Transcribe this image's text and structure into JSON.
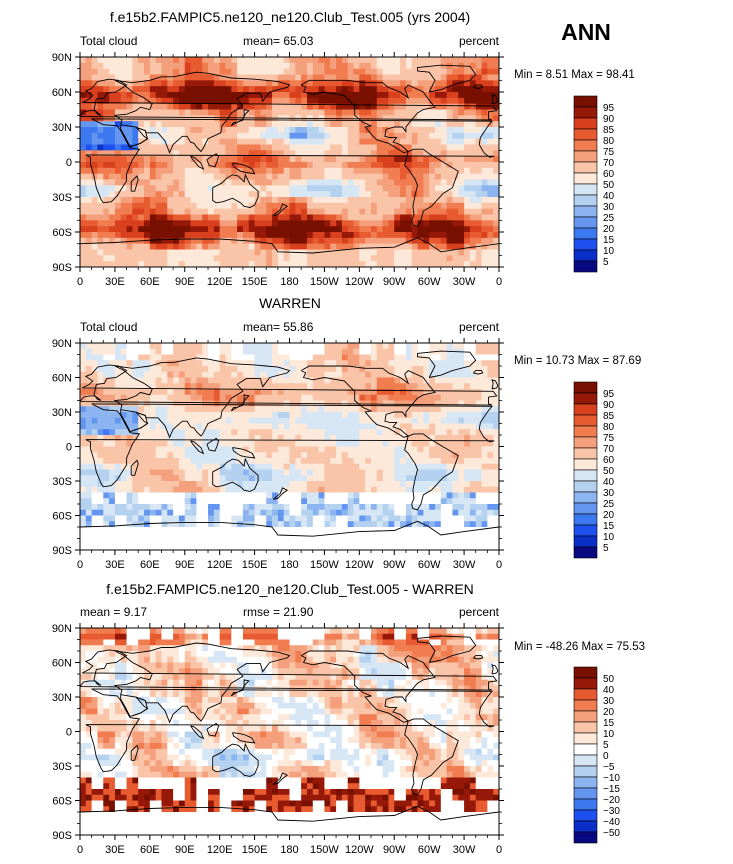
{
  "season": "ANN",
  "tick_labels": {
    "x": [
      "0",
      "30E",
      "60E",
      "90E",
      "120E",
      "150E",
      "180",
      "150W",
      "120W",
      "90W",
      "60W",
      "30W",
      "0"
    ],
    "y": [
      "90N",
      "60N",
      "30N",
      "0",
      "30S",
      "60S",
      "90S"
    ]
  },
  "colors": {
    "abs_scale": [
      "#080880",
      "#0a2ec8",
      "#1e50f0",
      "#3c78f0",
      "#6496f0",
      "#8cb4f0",
      "#b4d2f0",
      "#d7e6f5",
      "#ffffff",
      "#fde9d9",
      "#f9c4a8",
      "#f5a07c",
      "#f07c50",
      "#e85a30",
      "#d8401e",
      "#c02a10",
      "#961808",
      "#781000"
    ],
    "diff_scale": [
      "#080880",
      "#0a2ec8",
      "#1e50f0",
      "#3c78f0",
      "#6496f0",
      "#8cb4f0",
      "#b4d2f0",
      "#d7e6f5",
      "#ffffff",
      "#fde9d9",
      "#f9c4a8",
      "#f5a07c",
      "#f07c50",
      "#e85a30",
      "#d8401e",
      "#c02a10",
      "#961808",
      "#781000"
    ]
  },
  "chart_data": [
    {
      "type": "heatmap",
      "title": "f.e15b2.FAMPIC5.ne120_ne120.Club_Test.005 (yrs 2004)",
      "left_label": "Total cloud",
      "center_label": "mean=   65.03",
      "right_label": "percent",
      "stats_label": "Min =    8.51  Max =   98.41",
      "min": 8.51,
      "max": 98.41,
      "mean": 65.03,
      "legend_levels": [
        "95",
        "90",
        "85",
        "80",
        "75",
        "70",
        "60",
        "50",
        "40",
        "30",
        "25",
        "20",
        "15",
        "10",
        "5"
      ],
      "xlim": [
        0,
        360
      ],
      "ylim": [
        -90,
        90
      ]
    },
    {
      "type": "heatmap",
      "title": "WARREN",
      "left_label": "Total cloud",
      "center_label": "mean=   55.86",
      "right_label": "percent",
      "stats_label": "Min =   10.73  Max =   87.69",
      "min": 10.73,
      "max": 87.69,
      "mean": 55.86,
      "legend_levels": [
        "95",
        "90",
        "85",
        "80",
        "75",
        "70",
        "60",
        "50",
        "40",
        "30",
        "25",
        "20",
        "15",
        "10",
        "5"
      ],
      "xlim": [
        0,
        360
      ],
      "ylim": [
        -90,
        90
      ]
    },
    {
      "type": "heatmap",
      "title": "f.e15b2.FAMPIC5.ne120_ne120.Club_Test.005 - WARREN",
      "left_label": "mean =    9.17",
      "center_label": "rmse =   21.90",
      "right_label": "percent",
      "stats_label": "Min = -48.26  Max =   75.53",
      "min": -48.26,
      "max": 75.53,
      "mean": 9.17,
      "rmse": 21.9,
      "legend_levels": [
        "50",
        "40",
        "30",
        "20",
        "15",
        "10",
        "5",
        "0",
        "−5",
        "−10",
        "−15",
        "−20",
        "−30",
        "−40",
        "−50"
      ],
      "xlim": [
        0,
        360
      ],
      "ylim": [
        -90,
        90
      ]
    }
  ]
}
